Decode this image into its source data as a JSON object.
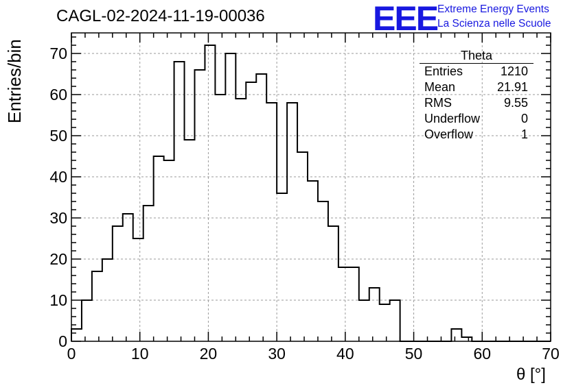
{
  "title": "CAGL-02-2024-11-19-00036",
  "logo": {
    "mark": "EEE",
    "line1": "Extreme Energy Events",
    "line2": "La Scienza nelle Scuole",
    "color": "#1818e0"
  },
  "stats_box": {
    "title": "Theta",
    "rows": [
      {
        "label": "Entries",
        "value": "1210"
      },
      {
        "label": "Mean",
        "value": "21.91"
      },
      {
        "label": "RMS",
        "value": "9.55"
      },
      {
        "label": "Underflow",
        "value": "0"
      },
      {
        "label": "Overflow",
        "value": "1"
      }
    ]
  },
  "chart_data": {
    "type": "bar",
    "style": "step-histogram",
    "title": "CAGL-02-2024-11-19-00036",
    "xlabel": "θ [°]",
    "ylabel": "Entries/bin",
    "xlim": [
      0,
      70
    ],
    "ylim": [
      0,
      75
    ],
    "bin_width": 1.5,
    "bin_start": 0,
    "xticks": [
      0,
      10,
      20,
      30,
      40,
      50,
      60,
      70
    ],
    "yticks": [
      0,
      10,
      20,
      30,
      40,
      50,
      60,
      70
    ],
    "grid": true,
    "values": [
      3,
      10,
      17,
      20,
      28,
      31,
      25,
      33,
      45,
      44,
      68,
      49,
      66,
      72,
      60,
      70,
      59,
      63,
      65,
      58,
      36,
      58,
      46,
      39,
      34,
      28,
      18,
      18,
      10,
      13,
      9,
      10,
      0,
      0,
      0,
      0,
      0,
      3,
      1,
      0,
      0,
      0,
      0,
      0,
      0,
      0,
      0
    ]
  }
}
